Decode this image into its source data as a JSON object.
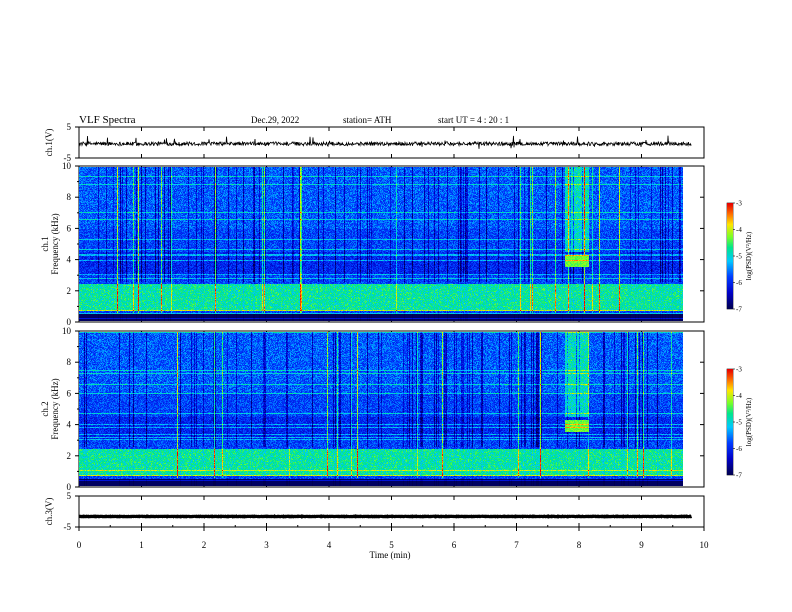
{
  "header": {
    "title": "VLF  Spectra",
    "date": "Dec.29, 2022",
    "station": "station= ATH",
    "start": "start  UT  =   4  : 20 : 1"
  },
  "chart_data": [
    {
      "type": "line",
      "id": "ch1-waveform",
      "ylabel": "ch.1(V)",
      "ylim": [
        -5,
        5
      ],
      "yticks": [
        "5",
        "-5"
      ],
      "x_range_min": [
        0,
        9.8
      ],
      "baseline_v": -0.4,
      "color": "#000000"
    },
    {
      "type": "heatmap",
      "id": "ch1-spectrogram",
      "ylabel": "ch.1\nFrequency  (kHz)",
      "ylim": [
        0,
        10
      ],
      "yticks": [
        "0",
        "2",
        "4",
        "6",
        "8",
        "10"
      ],
      "x_range_min": [
        0,
        9.8
      ],
      "colorbar": {
        "label": "log(PSD)(V²/Hz)",
        "range": [
          -7,
          -3
        ],
        "ticks": [
          "-3",
          "-4",
          "-5",
          "-6",
          "-7"
        ]
      },
      "features": {
        "burst_min": [
          8.0,
          8.4
        ],
        "burst_khz": [
          3.5,
          4.3
        ],
        "strong_band_khz": [
          0.6,
          2.4
        ]
      }
    },
    {
      "type": "heatmap",
      "id": "ch2-spectrogram",
      "ylabel": "ch.2\nFrequency  (kHz)",
      "ylim": [
        0,
        10
      ],
      "yticks": [
        "0",
        "2",
        "4",
        "6",
        "8",
        "10"
      ],
      "x_range_min": [
        0,
        9.8
      ],
      "colorbar": {
        "label": "log(PSD)(V²/Hz)",
        "range": [
          -7,
          -3
        ],
        "ticks": [
          "-3",
          "-4",
          "-5",
          "-6",
          "-7"
        ]
      },
      "features": {
        "burst_min": [
          8.0,
          8.4
        ],
        "burst_khz": [
          3.5,
          4.3
        ],
        "strong_band_khz": [
          0.6,
          2.4
        ]
      }
    },
    {
      "type": "line",
      "id": "ch3-waveform",
      "ylabel": "ch.3(V)",
      "ylim": [
        -5,
        5
      ],
      "yticks": [
        "5",
        "-5"
      ],
      "x_range_min": [
        0,
        9.8
      ],
      "baseline_v": -1.6,
      "color": "#000000"
    }
  ],
  "xaxis": {
    "label": "Time  (min)",
    "range": [
      0,
      10
    ],
    "ticks": [
      "0",
      "1",
      "2",
      "3",
      "4",
      "5",
      "6",
      "7",
      "8",
      "9",
      "10"
    ]
  }
}
